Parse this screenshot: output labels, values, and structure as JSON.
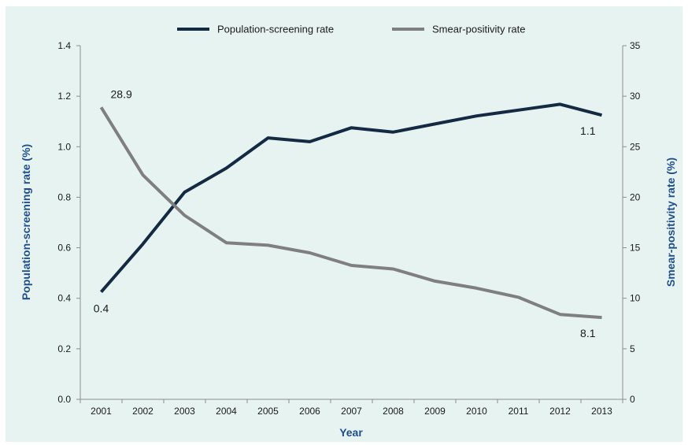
{
  "chart_data": {
    "type": "line",
    "x": [
      2001,
      2002,
      2003,
      2004,
      2005,
      2006,
      2007,
      2008,
      2009,
      2010,
      2011,
      2012,
      2013
    ],
    "xlabel": "Year",
    "ylabel_left": "Population-screening rate (%)",
    "ylabel_right": "Smear-positivity rate (%)",
    "ylim_left": [
      0,
      1.4
    ],
    "ylim_right": [
      0,
      35
    ],
    "yticks_left": [
      "0.0",
      "0.2",
      "0.4",
      "0.6",
      "0.8",
      "1.0",
      "1.2",
      "1.4"
    ],
    "yticks_right": [
      "0",
      "5",
      "10",
      "15",
      "20",
      "25",
      "30",
      "35"
    ],
    "grid": false,
    "legend_position": "top-center",
    "series": [
      {
        "name": "Population-screening rate",
        "axis": "left",
        "color": "#132a42",
        "values": [
          0.425,
          0.615,
          0.82,
          0.915,
          1.035,
          1.02,
          1.075,
          1.058,
          1.09,
          1.122,
          1.145,
          1.168,
          1.125
        ]
      },
      {
        "name": "Smear-positivity rate",
        "axis": "right",
        "color": "#7f7f7f",
        "values": [
          28.9,
          22.2,
          18.2,
          15.5,
          15.25,
          14.5,
          13.25,
          12.9,
          11.7,
          11.0,
          10.1,
          8.4,
          8.1
        ]
      }
    ],
    "annotations": [
      {
        "text": "28.9",
        "series": 1,
        "index": 0,
        "pos": "above-right"
      },
      {
        "text": "0.4",
        "series": 0,
        "index": 0,
        "pos": "below"
      },
      {
        "text": "1.1",
        "series": 0,
        "index": 12,
        "pos": "below-left"
      },
      {
        "text": "8.1",
        "series": 1,
        "index": 12,
        "pos": "below-left"
      }
    ]
  }
}
